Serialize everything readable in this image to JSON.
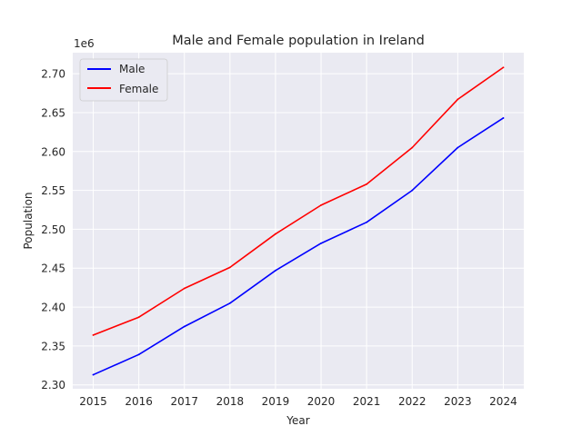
{
  "chart_data": {
    "type": "line",
    "title": "Male and Female population in Ireland",
    "xlabel": "Year",
    "ylabel": "Population",
    "y_offset_label": "1e6",
    "grid": true,
    "legend_position": "top-left",
    "x": [
      2015,
      2016,
      2017,
      2018,
      2019,
      2020,
      2021,
      2022,
      2023,
      2024
    ],
    "xticks": [
      "2015",
      "2016",
      "2017",
      "2018",
      "2019",
      "2020",
      "2021",
      "2022",
      "2023",
      "2024"
    ],
    "yticks": [
      "2.30",
      "2.35",
      "2.40",
      "2.45",
      "2.50",
      "2.55",
      "2.60",
      "2.65",
      "2.70"
    ],
    "ytick_values": [
      2.3,
      2.35,
      2.4,
      2.45,
      2.5,
      2.55,
      2.6,
      2.65,
      2.7
    ],
    "ylim": [
      2.295,
      2.727
    ],
    "xlim": [
      2014.55,
      2024.45
    ],
    "series": [
      {
        "name": "Male",
        "color": "#0000ff",
        "values": [
          2.313,
          2.339,
          2.375,
          2.405,
          2.447,
          2.482,
          2.509,
          2.55,
          2.605,
          2.643
        ]
      },
      {
        "name": "Female",
        "color": "#ff0000",
        "values": [
          2.364,
          2.387,
          2.424,
          2.451,
          2.494,
          2.531,
          2.558,
          2.605,
          2.667,
          2.708
        ]
      }
    ]
  }
}
